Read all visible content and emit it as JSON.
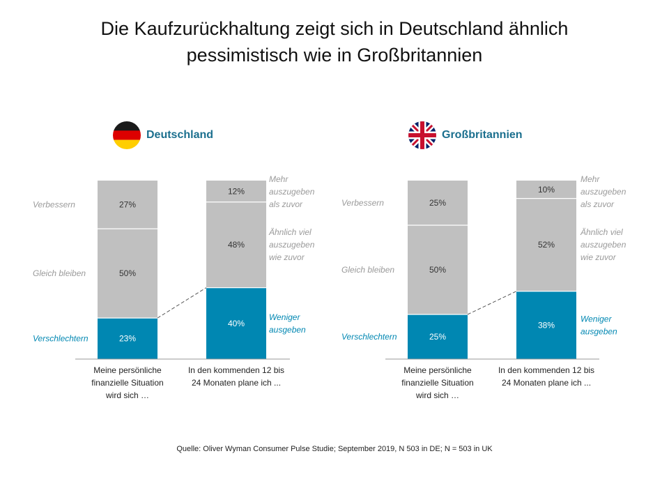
{
  "title_lines": [
    "Die Kaufzurückhaltung zeigt sich in Deutschland ähnlich",
    "pessimistisch wie in Großbritannien"
  ],
  "colors": {
    "grey": "#c0c0c0",
    "teal": "#0087b2",
    "label_grey": "#9a9a9a",
    "title_teal": "#1b6f8e"
  },
  "chart_data": [
    {
      "type": "bar",
      "stacked": true,
      "country": "Deutschland",
      "flag_icon": "germany-flag-icon",
      "categories": [
        [
          "Meine persönliche",
          "finanzielle Situation",
          "wird sich …"
        ],
        [
          "In den kommenden 12 bis",
          "24 Monaten plane ich ..."
        ]
      ],
      "series": [
        {
          "values": [
            23,
            40
          ],
          "labels": [
            "23%",
            "40%"
          ],
          "color": "#0087b2"
        },
        {
          "values": [
            50,
            48
          ],
          "labels": [
            "50%",
            "48%"
          ],
          "color": "#c0c0c0"
        },
        {
          "values": [
            27,
            12
          ],
          "labels": [
            "27%",
            "12%"
          ],
          "color": "#c0c0c0"
        }
      ],
      "left_labels": [
        "Verschlechtern",
        "Gleich bleiben",
        "Verbessern"
      ],
      "right_labels": [
        [
          "Weniger",
          "ausgeben"
        ],
        [
          "Ähnlich viel",
          "auszugeben",
          "wie zuvor"
        ],
        [
          "Mehr",
          "auszugeben",
          "als zuvor"
        ]
      ],
      "ylim": [
        0,
        100
      ]
    },
    {
      "type": "bar",
      "stacked": true,
      "country": "Großbritannien",
      "flag_icon": "uk-flag-icon",
      "categories": [
        [
          "Meine persönliche",
          "finanzielle Situation",
          "wird sich …"
        ],
        [
          "In den kommenden 12 bis",
          "24 Monaten plane ich ..."
        ]
      ],
      "series": [
        {
          "values": [
            25,
            38
          ],
          "labels": [
            "25%",
            "38%"
          ],
          "color": "#0087b2"
        },
        {
          "values": [
            50,
            52
          ],
          "labels": [
            "50%",
            "52%"
          ],
          "color": "#c0c0c0"
        },
        {
          "values": [
            25,
            10
          ],
          "labels": [
            "25%",
            "10%"
          ],
          "color": "#c0c0c0"
        }
      ],
      "left_labels": [
        "Verschlechtern",
        "Gleich bleiben",
        "Verbessern"
      ],
      "right_labels": [
        [
          "Weniger",
          "ausgeben"
        ],
        [
          "Ähnlich viel",
          "auszugeben",
          "wie zuvor"
        ],
        [
          "Mehr",
          "auszugeben",
          "als zuvor"
        ]
      ],
      "ylim": [
        0,
        100
      ]
    }
  ],
  "source": "Quelle: Oliver Wyman Consumer Pulse Studie; September 2019, N 503 in DE; N = 503 in UK"
}
